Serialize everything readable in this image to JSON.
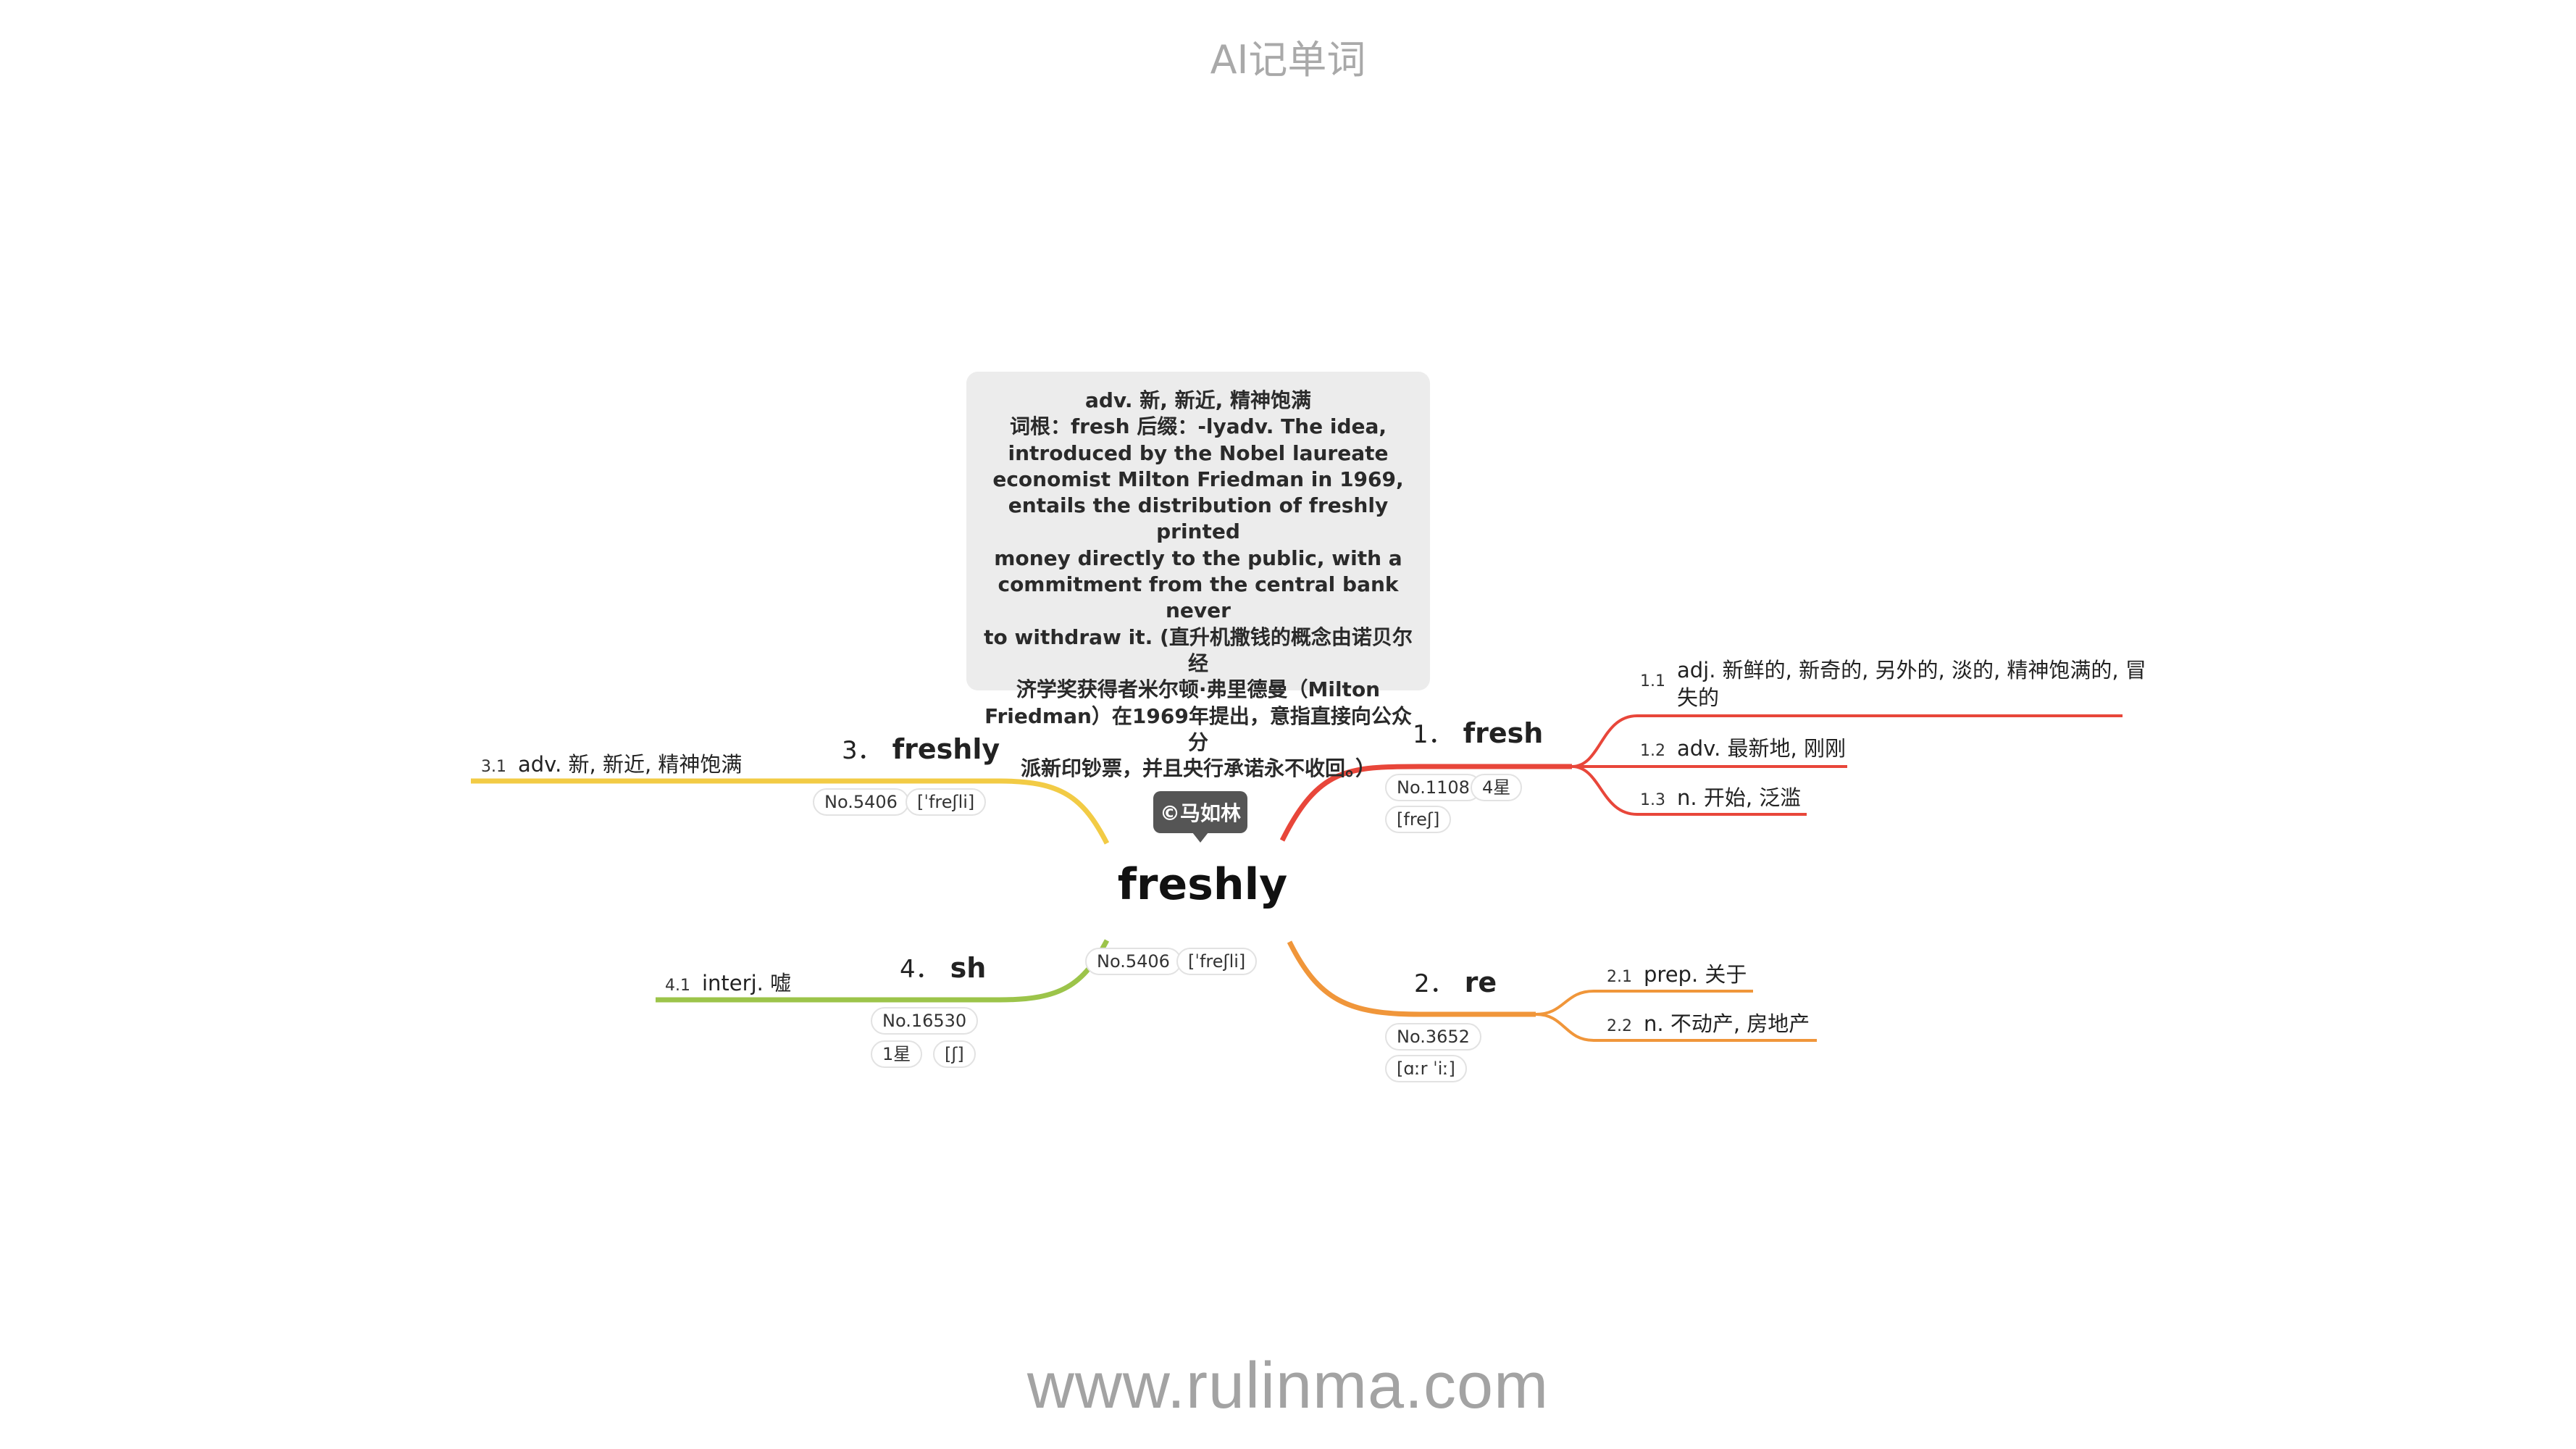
{
  "header": {
    "title": "AI记单词"
  },
  "footer": {
    "url": "www.rulinma.com"
  },
  "watermark": {
    "label": "©马如林"
  },
  "central": {
    "word": "freshly",
    "tags": [
      "No.5406",
      "[ˈfreʃli]"
    ]
  },
  "note": {
    "lines": [
      "adv. 新, 新近, 精神饱满",
      "词根：fresh 后缀：-lyadv. The idea,",
      "introduced by the Nobel laureate",
      "economist Milton Friedman in 1969,",
      "entails the distribution of freshly printed",
      "money directly to the public, with a",
      "commitment from the central bank never",
      "to withdraw it. (直升机撒钱的概念由诺贝尔经",
      "济学奖获得者米尔顿·弗里德曼（Milton",
      "Friedman）在1969年提出，意指直接向公众分",
      "派新印钞票，并且央行承诺永不收回。）"
    ]
  },
  "branches": [
    {
      "num": "1．",
      "word": "fresh",
      "color": "#e8463a",
      "tags": [
        "No.1108",
        "4星",
        "[freʃ]"
      ],
      "subs": [
        {
          "num": "1.1",
          "text": "adj. 新鲜的, 新奇的, 另外的, 淡的, 精神饱满的, 冒",
          "text2": "失的"
        },
        {
          "num": "1.2",
          "text": "adv. 最新地, 刚刚"
        },
        {
          "num": "1.3",
          "text": "n. 开始, 泛滥"
        }
      ]
    },
    {
      "num": "2．",
      "word": "re",
      "color": "#f0963a",
      "tags": [
        "No.3652",
        "[ɑːr ˈiː]"
      ],
      "subs": [
        {
          "num": "2.1",
          "text": "prep. 关于"
        },
        {
          "num": "2.2",
          "text": "n. 不动产, 房地产"
        }
      ]
    },
    {
      "num": "3．",
      "word": "freshly",
      "color": "#f2cb45",
      "tags": [
        "No.5406",
        "[ˈfreʃli]"
      ],
      "subs": [
        {
          "num": "3.1",
          "text": "adv. 新, 新近, 精神饱满"
        }
      ]
    },
    {
      "num": "4．",
      "word": "sh",
      "color": "#9cc44a",
      "tags": [
        "No.16530",
        "1星",
        "[ʃ]"
      ],
      "subs": [
        {
          "num": "4.1",
          "text": "interj. 嘘"
        }
      ]
    }
  ]
}
